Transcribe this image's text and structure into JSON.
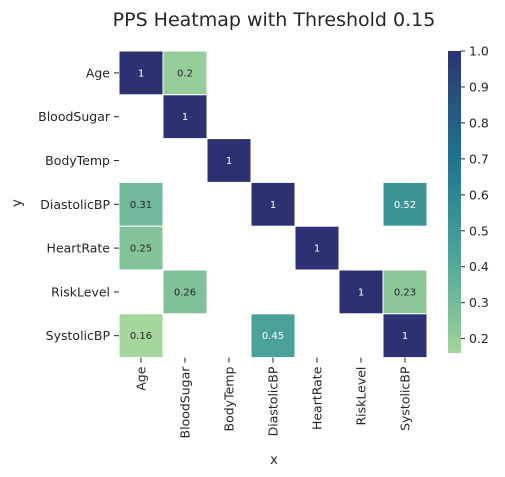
{
  "chart_data": {
    "type": "heatmap",
    "title": "PPS Heatmap with Threshold 0.15",
    "xlabel": "x",
    "ylabel": "y",
    "x_categories": [
      "Age",
      "BloodSugar",
      "BodyTemp",
      "DiastolicBP",
      "HeartRate",
      "RiskLevel",
      "SystolicBP"
    ],
    "y_categories": [
      "Age",
      "BloodSugar",
      "BodyTemp",
      "DiastolicBP",
      "HeartRate",
      "RiskLevel",
      "SystolicBP"
    ],
    "cells": [
      {
        "y": "Age",
        "x": "Age",
        "value": 1,
        "label": "1"
      },
      {
        "y": "Age",
        "x": "BloodSugar",
        "value": 0.2,
        "label": "0.2"
      },
      {
        "y": "BloodSugar",
        "x": "BloodSugar",
        "value": 1,
        "label": "1"
      },
      {
        "y": "BodyTemp",
        "x": "BodyTemp",
        "value": 1,
        "label": "1"
      },
      {
        "y": "DiastolicBP",
        "x": "Age",
        "value": 0.31,
        "label": "0.31"
      },
      {
        "y": "DiastolicBP",
        "x": "DiastolicBP",
        "value": 1,
        "label": "1"
      },
      {
        "y": "DiastolicBP",
        "x": "SystolicBP",
        "value": 0.52,
        "label": "0.52"
      },
      {
        "y": "HeartRate",
        "x": "Age",
        "value": 0.25,
        "label": "0.25"
      },
      {
        "y": "HeartRate",
        "x": "HeartRate",
        "value": 1,
        "label": "1"
      },
      {
        "y": "RiskLevel",
        "x": "BloodSugar",
        "value": 0.26,
        "label": "0.26"
      },
      {
        "y": "RiskLevel",
        "x": "RiskLevel",
        "value": 1,
        "label": "1"
      },
      {
        "y": "RiskLevel",
        "x": "SystolicBP",
        "value": 0.23,
        "label": "0.23"
      },
      {
        "y": "SystolicBP",
        "x": "Age",
        "value": 0.16,
        "label": "0.16"
      },
      {
        "y": "SystolicBP",
        "x": "DiastolicBP",
        "value": 0.45,
        "label": "0.45"
      },
      {
        "y": "SystolicBP",
        "x": "SystolicBP",
        "value": 1,
        "label": "1"
      }
    ],
    "colormap": "crest",
    "color_range": [
      0.16,
      1.0
    ],
    "colorbar_ticks": [
      "0.2",
      "0.3",
      "0.4",
      "0.5",
      "0.6",
      "0.7",
      "0.8",
      "0.9",
      "1.0"
    ],
    "colorbar_stops": [
      "#a5d69b",
      "#83c29a",
      "#66b39a",
      "#4ca39a",
      "#3a9297",
      "#2a8193",
      "#1f6f8d",
      "#245c85",
      "#2a4a7a",
      "#2c3172"
    ],
    "grid": false,
    "legend": "colorbar-right"
  }
}
